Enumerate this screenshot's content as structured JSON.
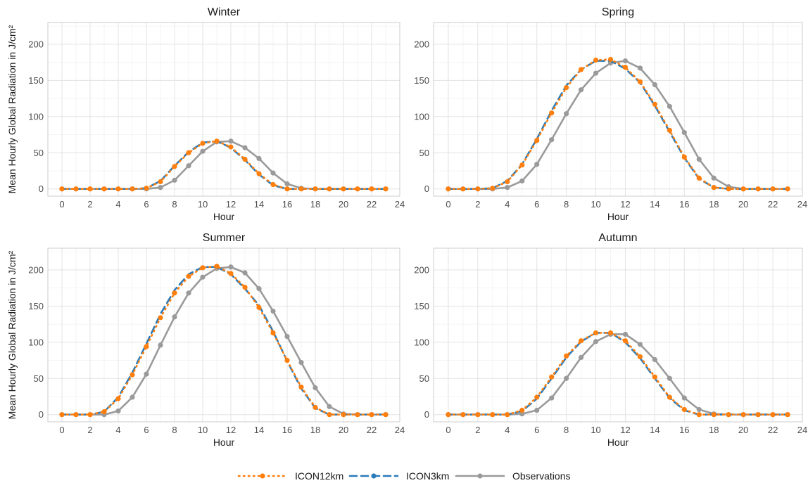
{
  "chart_data": {
    "type": "line",
    "shared_ylabel": "Mean Hourly Global Radiation in J/cm²",
    "legend_position": "bottom",
    "grid": true,
    "series_styles": [
      {
        "name": "ICON12km",
        "color": "#ff7f0e",
        "dash": "dotted"
      },
      {
        "name": "ICON3km",
        "color": "#2b7bb9",
        "dash": "dashed"
      },
      {
        "name": "Observations",
        "color": "#9a9a9a",
        "dash": "solid"
      }
    ],
    "panels": [
      {
        "title": "Winter",
        "xlabel": "Hour",
        "xlim": [
          -1,
          24
        ],
        "ylim": [
          -10,
          230
        ],
        "x_ticks": [
          0,
          2,
          4,
          6,
          8,
          10,
          12,
          14,
          16,
          18,
          20,
          22,
          24
        ],
        "y_ticks": [
          0,
          50,
          100,
          150,
          200
        ],
        "x": [
          0,
          1,
          2,
          3,
          4,
          5,
          6,
          7,
          8,
          9,
          10,
          11,
          12,
          13,
          14,
          15,
          16,
          17,
          18,
          19,
          20,
          21,
          22,
          23
        ],
        "series": [
          {
            "name": "ICON12km",
            "values": [
              0,
              0,
              0,
              0,
              0,
              0,
              1,
              10,
              31,
              50,
              63,
              66,
              58,
              41,
              21,
              6,
              0,
              0,
              0,
              0,
              0,
              0,
              0,
              0
            ]
          },
          {
            "name": "ICON3km",
            "values": [
              0,
              0,
              0,
              0,
              0,
              0,
              1,
              11,
              32,
              51,
              64,
              66,
              57,
              40,
              20,
              5,
              0,
              0,
              0,
              0,
              0,
              0,
              0,
              0
            ]
          },
          {
            "name": "Observations",
            "values": [
              0,
              0,
              0,
              0,
              0,
              0,
              0,
              2,
              12,
              32,
              52,
              65,
              66,
              57,
              42,
              22,
              7,
              1,
              0,
              0,
              0,
              0,
              0,
              0
            ]
          }
        ]
      },
      {
        "title": "Spring",
        "xlabel": "Hour",
        "xlim": [
          -1,
          24
        ],
        "ylim": [
          -10,
          230
        ],
        "x_ticks": [
          0,
          2,
          4,
          6,
          8,
          10,
          12,
          14,
          16,
          18,
          20,
          22,
          24
        ],
        "y_ticks": [
          0,
          50,
          100,
          150,
          200
        ],
        "x": [
          0,
          1,
          2,
          3,
          4,
          5,
          6,
          7,
          8,
          9,
          10,
          11,
          12,
          13,
          14,
          15,
          16,
          17,
          18,
          19,
          20,
          21,
          22,
          23
        ],
        "series": [
          {
            "name": "ICON12km",
            "values": [
              0,
              0,
              0,
              1,
              10,
              33,
              67,
              105,
              140,
              165,
              178,
              179,
              168,
              148,
              117,
              81,
              44,
              15,
              2,
              0,
              0,
              0,
              0,
              0
            ]
          },
          {
            "name": "ICON3km",
            "values": [
              0,
              0,
              0,
              1,
              11,
              34,
              69,
              108,
              143,
              165,
              177,
              177,
              166,
              147,
              115,
              79,
              43,
              14,
              2,
              0,
              0,
              0,
              0,
              0
            ]
          },
          {
            "name": "Observations",
            "values": [
              0,
              0,
              0,
              0,
              2,
              11,
              34,
              68,
              104,
              137,
              160,
              174,
              177,
              167,
              144,
              114,
              78,
              41,
              15,
              3,
              0,
              0,
              0,
              0
            ]
          }
        ]
      },
      {
        "title": "Summer",
        "xlabel": "Hour",
        "xlim": [
          -1,
          24
        ],
        "ylim": [
          -10,
          230
        ],
        "x_ticks": [
          0,
          2,
          4,
          6,
          8,
          10,
          12,
          14,
          16,
          18,
          20,
          22,
          24
        ],
        "y_ticks": [
          0,
          50,
          100,
          150,
          200
        ],
        "x": [
          0,
          1,
          2,
          3,
          4,
          5,
          6,
          7,
          8,
          9,
          10,
          11,
          12,
          13,
          14,
          15,
          16,
          17,
          18,
          19,
          20,
          21,
          22,
          23
        ],
        "series": [
          {
            "name": "ICON12km",
            "values": [
              0,
              0,
              0,
              4,
              22,
              55,
              94,
              134,
              168,
              191,
              203,
              205,
              195,
              176,
              148,
              113,
              75,
              38,
              10,
              0,
              0,
              0,
              0,
              0
            ]
          },
          {
            "name": "ICON3km",
            "values": [
              0,
              0,
              0,
              4,
              24,
              58,
              98,
              139,
              172,
              194,
              204,
              204,
              194,
              174,
              151,
              115,
              74,
              36,
              9,
              0,
              0,
              0,
              0,
              0
            ]
          },
          {
            "name": "Observations",
            "values": [
              0,
              0,
              0,
              0,
              5,
              24,
              56,
              96,
              135,
              168,
              190,
              202,
              204,
              196,
              174,
              143,
              108,
              72,
              37,
              11,
              1,
              0,
              0,
              0
            ]
          }
        ]
      },
      {
        "title": "Autumn",
        "xlabel": "Hour",
        "xlim": [
          -1,
          24
        ],
        "ylim": [
          -10,
          230
        ],
        "x_ticks": [
          0,
          2,
          4,
          6,
          8,
          10,
          12,
          14,
          16,
          18,
          20,
          22,
          24
        ],
        "y_ticks": [
          0,
          50,
          100,
          150,
          200
        ],
        "x": [
          0,
          1,
          2,
          3,
          4,
          5,
          6,
          7,
          8,
          9,
          10,
          11,
          12,
          13,
          14,
          15,
          16,
          17,
          18,
          19,
          20,
          21,
          22,
          23
        ],
        "series": [
          {
            "name": "ICON12km",
            "values": [
              0,
              0,
              0,
              0,
              0,
              6,
              24,
              52,
              81,
              102,
              113,
              113,
              102,
              80,
              52,
              24,
              7,
              0,
              0,
              0,
              0,
              0,
              0,
              0
            ]
          },
          {
            "name": "ICON3km",
            "values": [
              0,
              0,
              0,
              0,
              0,
              5,
              22,
              50,
              79,
              101,
              113,
              113,
              100,
              78,
              50,
              23,
              6,
              0,
              0,
              0,
              0,
              0,
              0,
              0
            ]
          },
          {
            "name": "Observations",
            "values": [
              0,
              0,
              0,
              0,
              0,
              1,
              6,
              23,
              50,
              79,
              101,
              111,
              111,
              97,
              76,
              50,
              23,
              7,
              1,
              0,
              0,
              0,
              0,
              0
            ]
          }
        ]
      }
    ]
  }
}
